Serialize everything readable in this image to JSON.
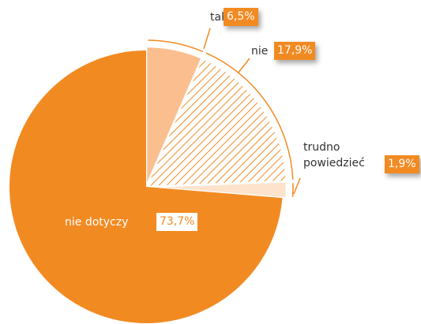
{
  "chart_data": {
    "type": "pie",
    "categories": [
      "tak",
      "nie",
      "trudno powiedzieć",
      "nie dotyczy"
    ],
    "values": [
      6.5,
      17.9,
      1.9,
      73.7
    ],
    "value_labels": [
      "6,5%",
      "17,9%",
      "1,9%",
      "73,7%"
    ],
    "colors": [
      "#fbbf8f",
      "#f28a22",
      "#fde3cc",
      "#f28a22"
    ],
    "hatched": [
      false,
      true,
      false,
      false
    ]
  }
}
